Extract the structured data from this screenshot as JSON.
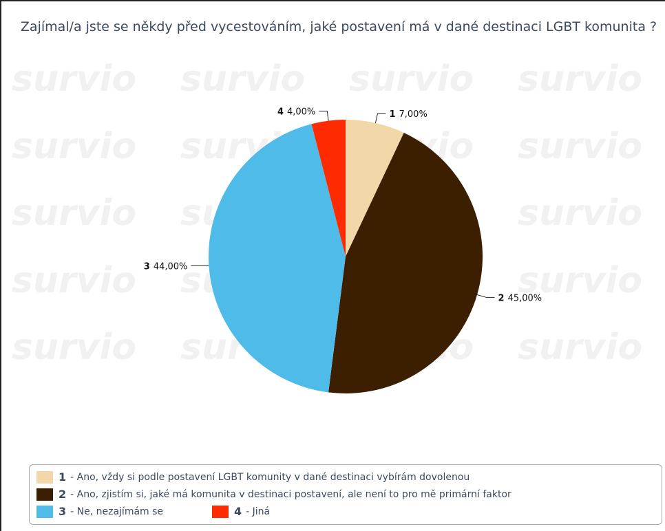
{
  "chart_data": {
    "type": "pie",
    "title": "Zajímal/a jste se někdy před vycestováním, jaké postavení má v dané destinaci LGBT komunita ?",
    "watermark": "survio",
    "categories": [
      "1",
      "2",
      "3",
      "4"
    ],
    "descriptions": [
      "- Ano, vždy si podle postavení LGBT komunity v dané destinaci vybírám dovolenou",
      "- Ano, zjistím si, jaké má komunita v destinaci postavení, ale není to pro mě primární faktor",
      "- Ne, nezajímám se",
      "- Jiná"
    ],
    "values": [
      7,
      45,
      44,
      4
    ],
    "value_labels": [
      "7,00%",
      "45,00%",
      "44,00%",
      "4,00%"
    ],
    "colors": [
      "#f2d8a9",
      "#3c1e00",
      "#4fbbe9",
      "#ff2b00"
    ]
  }
}
